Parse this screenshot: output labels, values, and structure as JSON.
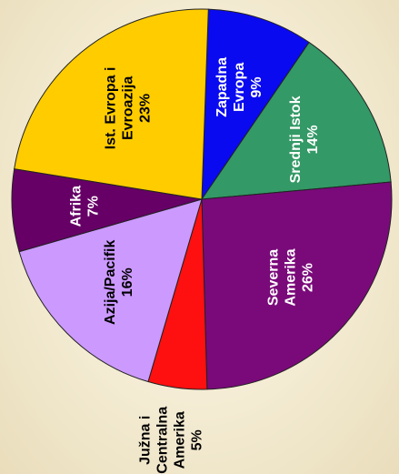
{
  "chart_data": {
    "type": "pie",
    "orientation": "rotated 90 degrees counter-clockwise",
    "slices": [
      {
        "lines": [
          "Zapadna",
          "Evropa",
          "9%"
        ],
        "value": 9,
        "color": "#0a0af0",
        "label_color": "#ffffff",
        "label_position": "inside"
      },
      {
        "lines": [
          "Srednji Istok",
          "14%"
        ],
        "value": 14,
        "color": "#339966",
        "label_color": "#ffffff",
        "label_position": "inside"
      },
      {
        "lines": [
          "Severna",
          "Amerika",
          "26%"
        ],
        "value": 26,
        "color": "#7a0a7a",
        "label_color": "#ffffff",
        "label_position": "inside"
      },
      {
        "lines": [
          "Južna i",
          "Centralna",
          "Amerika",
          "5%"
        ],
        "value": 5,
        "color": "#ff1010",
        "label_color": "#000000",
        "label_position": "outside"
      },
      {
        "lines": [
          "Azija/Pacifik",
          "16%"
        ],
        "value": 16,
        "color": "#cc99ff",
        "label_color": "#000000",
        "label_position": "inside"
      },
      {
        "lines": [
          "Afrika",
          "7%"
        ],
        "value": 7,
        "color": "#660066",
        "label_color": "#ffffff",
        "label_position": "inside"
      },
      {
        "lines": [
          "Ist. Evropa i",
          "Evroazija",
          "23%"
        ],
        "value": 23,
        "color": "#ffcc00",
        "label_color": "#000000",
        "label_position": "inside"
      }
    ]
  }
}
